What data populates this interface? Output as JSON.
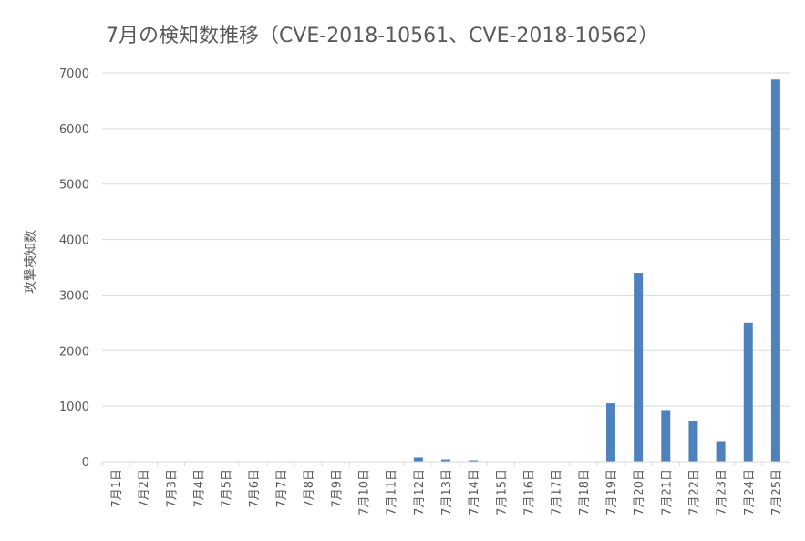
{
  "chart_data": {
    "type": "bar",
    "title": "7月の検知数推移（CVE-2018-10561、CVE-2018-10562）",
    "xlabel": "",
    "ylabel": "攻撃検知数",
    "ylim": [
      0,
      7000
    ],
    "yticks": [
      0,
      1000,
      2000,
      3000,
      4000,
      5000,
      6000,
      7000
    ],
    "grid": true,
    "legend": "none",
    "bar_color": "#4f81bd",
    "categories": [
      "7月1日",
      "7月2日",
      "7月3日",
      "7月4日",
      "7月5日",
      "7月6日",
      "7月7日",
      "7月8日",
      "7月9日",
      "7月10日",
      "7月11日",
      "7月12日",
      "7月13日",
      "7月14日",
      "7月15日",
      "7月16日",
      "7月17日",
      "7月18日",
      "7月19日",
      "7月20日",
      "7月21日",
      "7月22日",
      "7月23日",
      "7月24日",
      "7月25日"
    ],
    "values": [
      0,
      2,
      1,
      1,
      3,
      2,
      3,
      1,
      3,
      5,
      4,
      75,
      40,
      25,
      3,
      2,
      3,
      2,
      1050,
      3400,
      930,
      740,
      370,
      2500,
      6880
    ]
  }
}
